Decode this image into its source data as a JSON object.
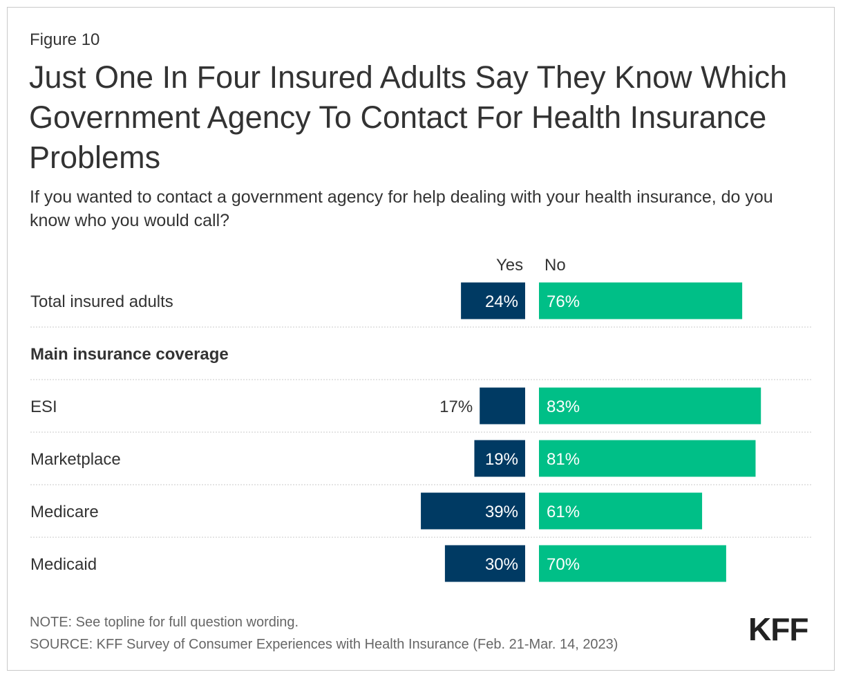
{
  "figure_label": "Figure 10",
  "title": "Just One In Four Insured Adults Say They Know Which Government Agency To Contact For Health Insurance Problems",
  "subtitle": "If you wanted to contact a government agency for help dealing with your health insurance, do you know who you would call?",
  "colors": {
    "yes": "#003a63",
    "no": "#00bf87",
    "text": "#333333",
    "divider": "#c8c8c8"
  },
  "chart_data": {
    "type": "bar",
    "orientation": "horizontal-diverging",
    "series": [
      {
        "name": "Yes",
        "values": [
          24,
          17,
          19,
          39,
          30
        ]
      },
      {
        "name": "No",
        "values": [
          76,
          83,
          81,
          61,
          70
        ]
      }
    ],
    "rows": [
      {
        "label": "Total insured adults",
        "yes": 24,
        "no": 76,
        "yes_label": "24%",
        "no_label": "76%"
      },
      {
        "section": "Main insurance coverage"
      },
      {
        "label": "ESI",
        "yes": 17,
        "no": 83,
        "yes_label": "17%",
        "no_label": "83%"
      },
      {
        "label": "Marketplace",
        "yes": 19,
        "no": 81,
        "yes_label": "19%",
        "no_label": "81%"
      },
      {
        "label": "Medicare",
        "yes": 39,
        "no": 61,
        "yes_label": "39%",
        "no_label": "61%"
      },
      {
        "label": "Medicaid",
        "yes": 30,
        "no": 70,
        "yes_label": "30%",
        "no_label": "70%"
      }
    ],
    "unit": "%",
    "grid": false,
    "legend": "column headers"
  },
  "note": "NOTE: See topline for full question wording.",
  "source": "SOURCE: KFF Survey of Consumer Experiences with Health Insurance (Feb. 21-Mar. 14, 2023)",
  "logo_text": "KFF"
}
